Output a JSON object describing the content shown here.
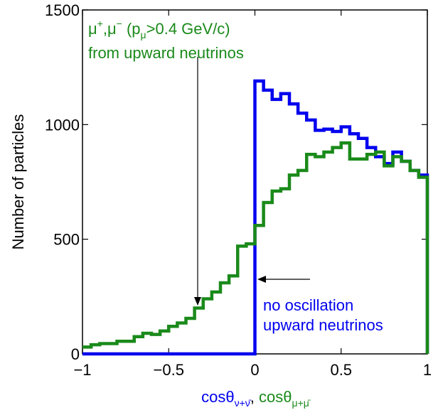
{
  "chart_data": {
    "type": "line",
    "step": true,
    "xlim": [
      -1,
      1
    ],
    "ylim": [
      0,
      1500
    ],
    "xticks": [
      -1,
      -0.5,
      0,
      0.5,
      1
    ],
    "xtick_labels": [
      "−1",
      "−0.5",
      "0",
      "0.5",
      "1"
    ],
    "yticks": [
      0,
      500,
      1000,
      1500
    ],
    "ytick_labels": [
      "0",
      "500",
      "1000",
      "1500"
    ],
    "ylabel": "Number of particles",
    "xlabel": {
      "part1_main": "cosθ",
      "part1_sub": "ν+ν̄",
      "separator": ", ",
      "part2_main": "cosθ",
      "part2_sub": "μ+μ̄"
    },
    "grid": false,
    "bin_edges": [
      -1,
      -0.95,
      -0.9,
      -0.85,
      -0.8,
      -0.75,
      -0.7,
      -0.65,
      -0.6,
      -0.55,
      -0.5,
      -0.45,
      -0.4,
      -0.35,
      -0.3,
      -0.25,
      -0.2,
      -0.15,
      -0.1,
      -0.05,
      0,
      0.05,
      0.1,
      0.15,
      0.2,
      0.25,
      0.3,
      0.35,
      0.4,
      0.45,
      0.5,
      0.55,
      0.6,
      0.65,
      0.7,
      0.75,
      0.8,
      0.85,
      0.9,
      0.95,
      1
    ],
    "series": [
      {
        "color": "#0000ee",
        "values": [
          0,
          0,
          0,
          0,
          0,
          0,
          0,
          0,
          0,
          0,
          0,
          0,
          0,
          0,
          0,
          0,
          0,
          0,
          0,
          0,
          1190,
          1150,
          1110,
          1135,
          1090,
          1050,
          1020,
          975,
          980,
          970,
          990,
          960,
          940,
          900,
          860,
          830,
          880,
          840,
          800,
          780
        ]
      },
      {
        "color": "#1a8a1a",
        "values": [
          30,
          40,
          45,
          45,
          55,
          55,
          75,
          90,
          85,
          100,
          120,
          135,
          155,
          200,
          240,
          270,
          310,
          340,
          470,
          480,
          560,
          660,
          710,
          720,
          780,
          800,
          870,
          860,
          880,
          900,
          920,
          850,
          850,
          870,
          880,
          820,
          860,
          840,
          800,
          770
        ]
      }
    ],
    "annotations": {
      "green_line1_prefix": "μ",
      "green_line1_sup1": "+",
      "green_line1_mid": ",μ",
      "green_line1_sup2": "−",
      "green_line1_p": "  (p",
      "green_line1_psub": "μ",
      "green_line1_tail": ">0.4 GeV/c)",
      "green_line2": "from upward neutrinos",
      "blue_line1": "no oscillation",
      "blue_line2": "upward neutrinos"
    }
  }
}
